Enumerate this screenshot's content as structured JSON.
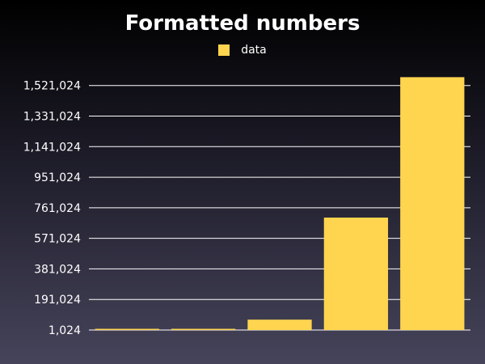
{
  "chart_data": {
    "type": "bar",
    "title": "Formatted numbers",
    "xlabel": "",
    "ylabel": "",
    "categories": [
      "",
      "",
      "",
      "",
      ""
    ],
    "series": [
      {
        "name": "data",
        "color": "#ffd54f",
        "values": [
          1024,
          4096,
          65536,
          700000,
          1572864
        ]
      }
    ],
    "yticks": [
      1024,
      191024,
      381024,
      571024,
      761024,
      951024,
      1141024,
      1331024,
      1521024
    ],
    "ytick_labels": [
      "1,024",
      "191,024",
      "381,024",
      "571,024",
      "761,024",
      "951,024",
      "1,141,024",
      "1,331,024",
      "1,521,024"
    ],
    "ylim": [
      1024,
      1600000
    ],
    "grid": true,
    "legend_position": "top-center"
  }
}
